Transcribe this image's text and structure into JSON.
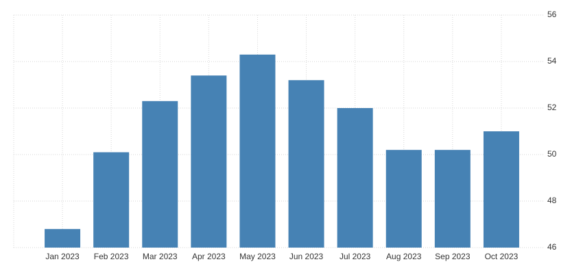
{
  "chart_data": {
    "type": "bar",
    "categories": [
      "Jan 2023",
      "Feb 2023",
      "Mar 2023",
      "Apr 2023",
      "May 2023",
      "Jun 2023",
      "Jul 2023",
      "Aug 2023",
      "Sep 2023",
      "Oct 2023"
    ],
    "values": [
      46.8,
      50.1,
      52.3,
      53.4,
      54.3,
      53.2,
      52.0,
      50.2,
      50.2,
      51.0
    ],
    "color": "#4682b4",
    "ylim": [
      46,
      56
    ],
    "yticks": [
      46,
      48,
      50,
      52,
      54,
      56
    ],
    "grid": true
  }
}
